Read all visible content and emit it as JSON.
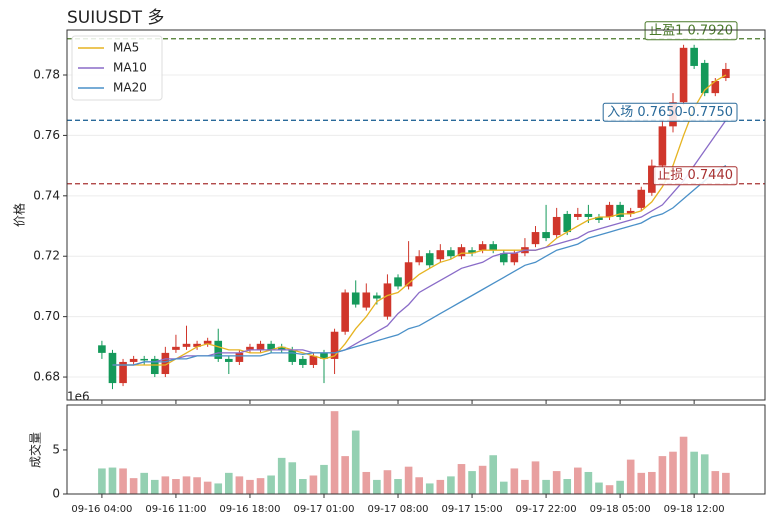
{
  "chart_data": {
    "type": "candlestick",
    "title": "SUIUSDT  多",
    "ylabel": "价格",
    "categories": [
      "09-16 04:00",
      null,
      null,
      null,
      null,
      null,
      null,
      "09-16 11:00",
      null,
      null,
      null,
      null,
      null,
      null,
      "09-16 18:00",
      null,
      null,
      null,
      null,
      null,
      null,
      "09-17 01:00",
      null,
      null,
      null,
      null,
      null,
      null,
      "09-17 08:00",
      null,
      null,
      null,
      null,
      null,
      null,
      "09-17 15:00",
      null,
      null,
      null,
      null,
      null,
      null,
      "09-17 22:00",
      null,
      null,
      null,
      null,
      null,
      null,
      "09-18 05:00",
      null,
      null,
      null,
      null,
      null,
      null,
      "09-18 12:00",
      null,
      null,
      null
    ],
    "xlim": [
      -3.3,
      62.7
    ],
    "ylim": [
      0.6724,
      0.7949
    ],
    "yticks": [
      0.68,
      {
        "value": 0.7,
        "label": "0.70"
      },
      0.72,
      0.74,
      0.76,
      0.78
    ],
    "grid": true,
    "up_color": "#d0362b",
    "down_color": "#14995a",
    "open": [
      0.6905,
      0.688,
      0.678,
      0.685,
      0.686,
      0.686,
      0.681,
      0.689,
      0.69,
      0.69,
      0.691,
      0.692,
      0.686,
      0.685,
      0.689,
      0.689,
      0.691,
      0.69,
      0.689,
      0.686,
      0.684,
      0.688,
      0.686,
      0.695,
      0.708,
      0.703,
      0.707,
      0.7,
      0.713,
      0.71,
      0.718,
      0.721,
      0.719,
      0.722,
      0.72,
      0.722,
      0.722,
      0.724,
      0.721,
      0.718,
      0.721,
      0.724,
      0.728,
      0.727,
      0.734,
      0.733,
      0.734,
      0.733,
      0.733,
      0.737,
      0.734,
      0.736,
      0.741,
      0.75,
      0.763,
      0.771,
      0.789,
      0.784,
      0.774,
      0.779
    ],
    "high": [
      0.692,
      0.689,
      0.686,
      0.687,
      0.687,
      0.687,
      0.69,
      0.694,
      0.697,
      0.692,
      0.693,
      0.696,
      0.687,
      0.689,
      0.691,
      0.692,
      0.692,
      0.691,
      0.69,
      0.687,
      0.688,
      0.689,
      0.696,
      0.709,
      0.712,
      0.711,
      0.708,
      0.714,
      0.714,
      0.725,
      0.722,
      0.722,
      0.724,
      0.723,
      0.724,
      0.723,
      0.725,
      0.725,
      0.722,
      0.722,
      0.726,
      0.73,
      0.737,
      0.736,
      0.735,
      0.736,
      0.737,
      0.734,
      0.738,
      0.738,
      0.736,
      0.743,
      0.752,
      0.765,
      0.774,
      0.79,
      0.79,
      0.785,
      0.779,
      0.784
    ],
    "low": [
      0.686,
      0.676,
      0.677,
      0.684,
      0.684,
      0.68,
      0.68,
      0.688,
      0.689,
      0.689,
      0.69,
      0.685,
      0.681,
      0.684,
      0.688,
      0.688,
      0.688,
      0.688,
      0.684,
      0.683,
      0.683,
      0.678,
      0.681,
      0.694,
      0.703,
      0.702,
      0.704,
      0.699,
      0.709,
      0.709,
      0.717,
      0.716,
      0.718,
      0.719,
      0.719,
      0.72,
      0.721,
      0.721,
      0.717,
      0.717,
      0.72,
      0.723,
      0.725,
      0.726,
      0.727,
      0.732,
      0.731,
      0.731,
      0.732,
      0.732,
      0.733,
      0.735,
      0.74,
      0.749,
      0.761,
      0.77,
      0.782,
      0.773,
      0.773,
      0.778
    ],
    "close": [
      0.688,
      0.678,
      0.685,
      0.686,
      0.6855,
      0.681,
      0.688,
      0.69,
      0.691,
      0.691,
      0.692,
      0.686,
      0.685,
      0.688,
      0.69,
      0.691,
      0.689,
      0.689,
      0.685,
      0.684,
      0.687,
      0.686,
      0.695,
      0.708,
      0.704,
      0.708,
      0.706,
      0.711,
      0.71,
      0.718,
      0.72,
      0.717,
      0.722,
      0.72,
      0.723,
      0.721,
      0.724,
      0.722,
      0.718,
      0.721,
      0.723,
      0.728,
      0.726,
      0.733,
      0.728,
      0.734,
      0.733,
      0.732,
      0.737,
      0.733,
      0.735,
      0.742,
      0.75,
      0.763,
      0.771,
      0.789,
      0.783,
      0.774,
      0.778,
      0.782
    ],
    "ma": [
      {
        "name": "MA5",
        "color": "#e6b422",
        "values": [
          null,
          0.684,
          0.684,
          0.684,
          0.684,
          0.684,
          0.684,
          0.686,
          0.688,
          0.69,
          0.691,
          0.69,
          0.689,
          0.689,
          0.688,
          0.688,
          0.689,
          0.69,
          0.689,
          0.688,
          0.687,
          0.686,
          0.687,
          0.691,
          0.696,
          0.7,
          0.705,
          0.707,
          0.708,
          0.711,
          0.714,
          0.716,
          0.718,
          0.719,
          0.721,
          0.721,
          0.722,
          0.722,
          0.722,
          0.722,
          0.722,
          0.722,
          0.723,
          0.726,
          0.728,
          0.73,
          0.732,
          0.733,
          0.733,
          0.734,
          0.734,
          0.735,
          0.738,
          0.743,
          0.75,
          0.76,
          0.769,
          0.775,
          0.778,
          0.78
        ]
      },
      {
        "name": "MA10",
        "color": "#8a6cc8",
        "values": [
          null,
          0.684,
          0.684,
          0.684,
          0.685,
          0.685,
          0.686,
          0.686,
          0.687,
          0.687,
          0.687,
          0.688,
          0.688,
          0.688,
          0.689,
          0.689,
          0.689,
          0.689,
          0.689,
          0.689,
          0.688,
          0.688,
          0.688,
          0.689,
          0.691,
          0.693,
          0.695,
          0.697,
          0.701,
          0.704,
          0.708,
          0.71,
          0.712,
          0.714,
          0.716,
          0.717,
          0.718,
          0.72,
          0.721,
          0.721,
          0.722,
          0.722,
          0.723,
          0.724,
          0.725,
          0.726,
          0.728,
          0.729,
          0.73,
          0.731,
          0.732,
          0.733,
          0.735,
          0.737,
          0.741,
          0.745,
          0.75,
          0.755,
          0.76,
          0.765
        ]
      },
      {
        "name": "MA20",
        "color": "#4a90c8",
        "values": [
          null,
          0.684,
          0.684,
          0.684,
          0.685,
          0.685,
          0.685,
          0.686,
          0.686,
          0.687,
          0.687,
          0.687,
          0.687,
          0.687,
          0.687,
          0.687,
          0.688,
          0.688,
          0.688,
          0.6875,
          0.688,
          0.688,
          0.688,
          0.689,
          0.69,
          0.691,
          0.692,
          0.693,
          0.694,
          0.696,
          0.697,
          0.699,
          0.701,
          0.703,
          0.705,
          0.707,
          0.709,
          0.711,
          0.713,
          0.715,
          0.717,
          0.718,
          0.72,
          0.722,
          0.723,
          0.724,
          0.726,
          0.727,
          0.728,
          0.729,
          0.73,
          0.731,
          0.733,
          0.734,
          0.736,
          0.739,
          0.742,
          0.745,
          0.748,
          0.75
        ]
      }
    ],
    "legend": "upper left",
    "levels": [
      {
        "value": 0.792,
        "label": "止盈1 0.7920",
        "color": "#4a7a2a"
      },
      {
        "value": 0.765,
        "label": "入场 0.7650-0.7750",
        "color": "#2a6a9a"
      },
      {
        "value": 0.744,
        "label": "止损 0.7440",
        "color": "#a83232"
      }
    ],
    "volume": {
      "ylabel": "成交量",
      "offset_label": "1e6",
      "ylim": [
        0,
        10.1
      ],
      "yticks": [
        0,
        5
      ],
      "up_color": "#e8a0a0",
      "down_color": "#94d0b2",
      "values": [
        2.9,
        3.0,
        2.9,
        1.8,
        2.4,
        1.6,
        2.0,
        1.7,
        2.0,
        1.9,
        1.4,
        1.2,
        2.4,
        2.0,
        1.6,
        1.8,
        2.1,
        4.1,
        3.6,
        1.7,
        2.1,
        3.3,
        9.4,
        4.3,
        7.2,
        2.5,
        1.6,
        2.7,
        1.7,
        3.1,
        1.9,
        1.2,
        1.6,
        2.0,
        3.4,
        2.6,
        3.2,
        4.4,
        1.4,
        2.9,
        1.6,
        3.7,
        1.6,
        2.6,
        1.7,
        3.0,
        2.5,
        1.3,
        1.0,
        1.5,
        3.9,
        2.4,
        2.5,
        4.3,
        4.8,
        6.5,
        4.8,
        4.5,
        2.6,
        2.4
      ]
    }
  }
}
